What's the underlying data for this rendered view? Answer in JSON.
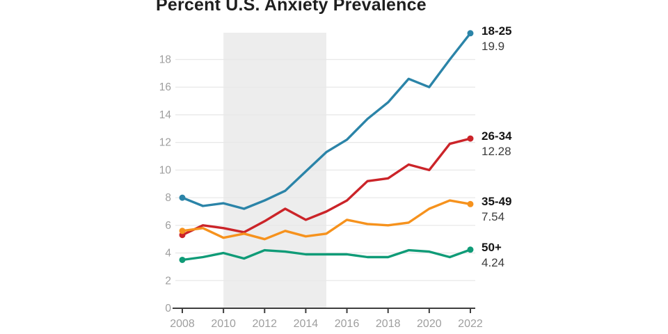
{
  "title": "Percent U.S. Anxiety Prevalence",
  "colors": {
    "background": "#ffffff",
    "title_text": "#1f1f1f",
    "axis_line": "#3d3d3d",
    "tick_label": "#9e9e9e",
    "gridline": "#e8e8e8",
    "shaded_band": "#ededed"
  },
  "chart_data": {
    "type": "line",
    "title": "Percent U.S. Anxiety Prevalence",
    "xlabel": "",
    "ylabel": "",
    "grid": true,
    "legend_position": "right-end-labels",
    "x": [
      2008,
      2009,
      2010,
      2011,
      2012,
      2013,
      2014,
      2015,
      2016,
      2017,
      2018,
      2019,
      2020,
      2021,
      2022
    ],
    "xticks": [
      2008,
      2010,
      2012,
      2014,
      2016,
      2018,
      2020,
      2022
    ],
    "yticks": [
      0,
      2,
      4,
      6,
      8,
      10,
      12,
      14,
      16,
      18
    ],
    "ylim": [
      0,
      20.6
    ],
    "shaded_region": {
      "x_start": 2010,
      "x_end": 2015
    },
    "series": [
      {
        "name": "18-25",
        "end_label": "19.9",
        "color": "#2b84a8",
        "values": [
          8.0,
          7.4,
          7.6,
          7.2,
          7.8,
          8.5,
          9.9,
          11.3,
          12.2,
          13.7,
          14.9,
          16.6,
          16.0,
          18.0,
          19.9
        ]
      },
      {
        "name": "26-34",
        "end_label": "12.28",
        "color": "#cb2429",
        "values": [
          5.3,
          6.0,
          5.8,
          5.5,
          6.3,
          7.2,
          6.4,
          7.0,
          7.8,
          9.2,
          9.4,
          10.4,
          10.0,
          11.9,
          12.28
        ]
      },
      {
        "name": "35-49",
        "end_label": "7.54",
        "color": "#f6921d",
        "values": [
          5.6,
          5.8,
          5.1,
          5.4,
          5.0,
          5.6,
          5.2,
          5.4,
          6.4,
          6.1,
          6.0,
          6.2,
          7.2,
          7.8,
          7.54
        ]
      },
      {
        "name": "50+",
        "end_label": "4.24",
        "color": "#0f9b77",
        "values": [
          3.5,
          3.7,
          4.0,
          3.6,
          4.2,
          4.1,
          3.9,
          3.9,
          3.9,
          3.7,
          3.7,
          4.2,
          4.1,
          3.7,
          4.24
        ]
      }
    ]
  }
}
